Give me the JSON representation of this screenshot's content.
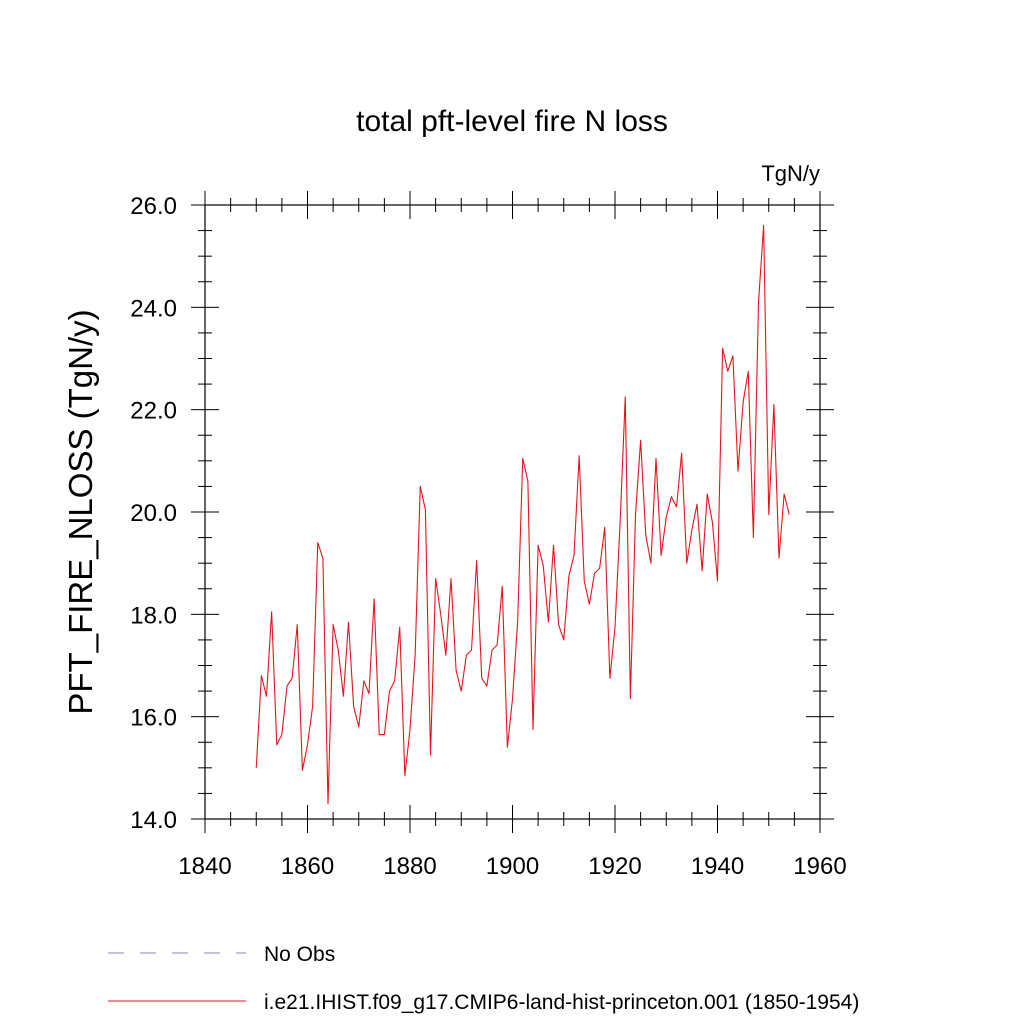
{
  "chart_data": {
    "type": "line",
    "title": "total pft-level fire N loss",
    "units_label": "TgN/y",
    "ylabel": "PFT_FIRE_NLOSS  (TgN/y)",
    "xlabel": "",
    "xlim": [
      1840,
      1960
    ],
    "ylim": [
      14.0,
      26.0
    ],
    "x_ticks": [
      1840,
      1860,
      1880,
      1900,
      1920,
      1940,
      1960
    ],
    "x_tick_labels": [
      "1840",
      "1860",
      "1880",
      "1900",
      "1920",
      "1940",
      "1960"
    ],
    "y_ticks": [
      14.0,
      16.0,
      18.0,
      20.0,
      22.0,
      24.0,
      26.0
    ],
    "y_tick_labels": [
      "14.0",
      "16.0",
      "18.0",
      "20.0",
      "22.0",
      "24.0",
      "26.0"
    ],
    "grid": false,
    "legend_position": "bottom-left",
    "legend": [
      {
        "label": "No Obs",
        "color": "#8a86c4",
        "style": "dashed"
      },
      {
        "label": "i.e21.IHIST.f09_g17.CMIP6-land-hist-princeton.001 (1850-1954)",
        "color": "#e8141c",
        "style": "solid"
      }
    ],
    "series": [
      {
        "color": "#e8141c",
        "x": [
          1850,
          1851,
          1852,
          1853,
          1854,
          1855,
          1856,
          1857,
          1858,
          1859,
          1860,
          1861,
          1862,
          1863,
          1864,
          1865,
          1866,
          1867,
          1868,
          1869,
          1870,
          1871,
          1872,
          1873,
          1874,
          1875,
          1876,
          1877,
          1878,
          1879,
          1880,
          1881,
          1882,
          1883,
          1884,
          1885,
          1886,
          1887,
          1888,
          1889,
          1890,
          1891,
          1892,
          1893,
          1894,
          1895,
          1896,
          1897,
          1898,
          1899,
          1900,
          1901,
          1902,
          1903,
          1904,
          1905,
          1906,
          1907,
          1908,
          1909,
          1910,
          1911,
          1912,
          1913,
          1914,
          1915,
          1916,
          1917,
          1918,
          1919,
          1920,
          1921,
          1922,
          1923,
          1924,
          1925,
          1926,
          1927,
          1928,
          1929,
          1930,
          1931,
          1932,
          1933,
          1934,
          1935,
          1936,
          1937,
          1938,
          1939,
          1940,
          1941,
          1942,
          1943,
          1944,
          1945,
          1946,
          1947,
          1948,
          1949,
          1950,
          1951,
          1952,
          1953,
          1954
        ],
        "values": [
          15.0,
          16.8,
          16.4,
          18.05,
          15.45,
          15.65,
          16.6,
          16.75,
          17.8,
          14.95,
          15.45,
          16.2,
          19.4,
          19.1,
          14.3,
          17.8,
          17.3,
          16.4,
          17.85,
          16.2,
          15.8,
          16.7,
          16.45,
          18.3,
          15.65,
          15.65,
          16.5,
          16.7,
          17.75,
          14.85,
          15.75,
          17.2,
          20.5,
          20.05,
          15.25,
          18.7,
          18.0,
          17.2,
          18.7,
          16.9,
          16.5,
          17.2,
          17.3,
          19.05,
          16.75,
          16.6,
          17.3,
          17.4,
          18.55,
          15.4,
          16.35,
          17.85,
          21.05,
          20.6,
          15.75,
          19.35,
          18.95,
          17.85,
          19.35,
          17.8,
          17.5,
          18.75,
          19.15,
          21.1,
          18.65,
          18.2,
          18.8,
          18.9,
          19.7,
          16.75,
          17.75,
          19.8,
          22.25,
          16.35,
          19.95,
          21.4,
          19.55,
          19.0,
          21.05,
          19.15,
          19.9,
          20.3,
          20.1,
          21.15,
          19.0,
          19.65,
          20.15,
          18.85,
          20.35,
          19.8,
          18.65,
          23.2,
          22.75,
          23.05,
          20.8,
          22.15,
          22.75,
          19.5,
          24.1,
          25.6,
          19.95,
          22.1,
          19.1,
          20.35,
          19.95
        ]
      }
    ]
  }
}
